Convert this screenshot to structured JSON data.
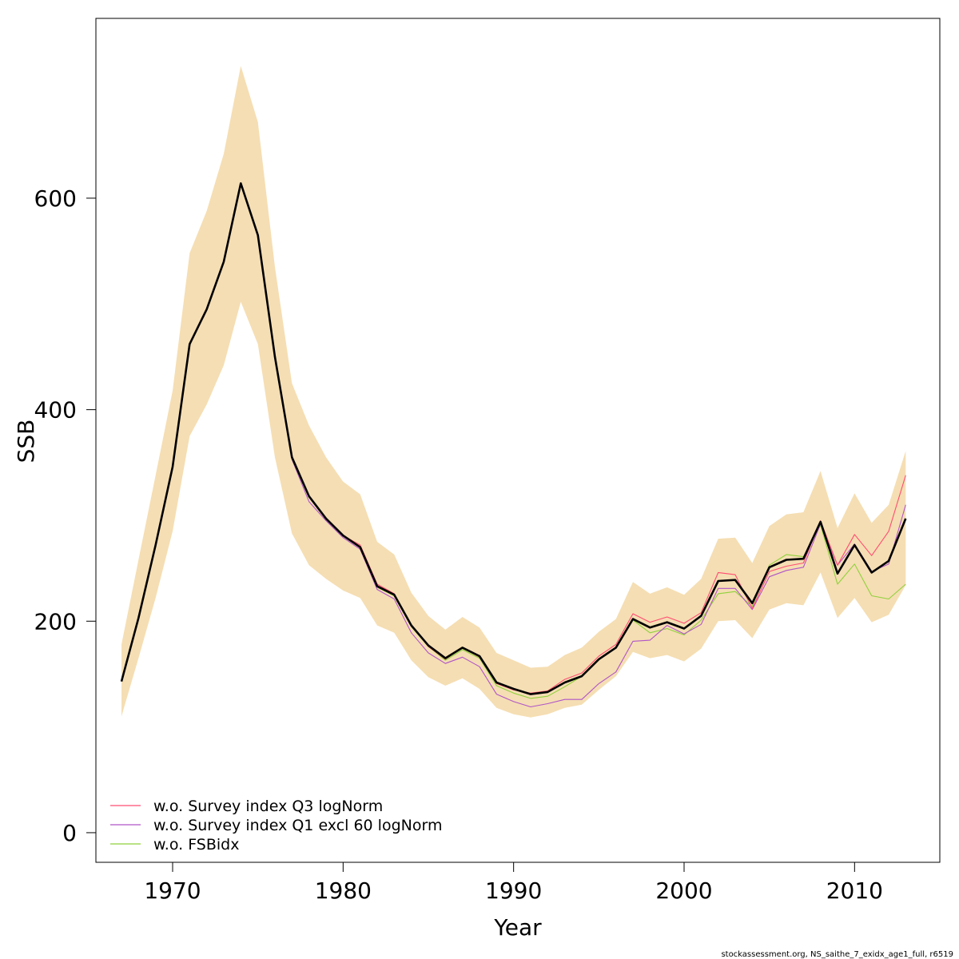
{
  "chart_data": {
    "type": "line",
    "xlabel": "Year",
    "ylabel": "SSB",
    "xlim": [
      1965.5,
      2015
    ],
    "ylim": [
      -28,
      770
    ],
    "x_ticks": [
      1970,
      1980,
      1990,
      2000,
      2010
    ],
    "y_ticks": [
      0,
      200,
      400,
      600
    ],
    "grid": false,
    "legend_position": "bottom-left",
    "caption": "stockassessment.org, NS_saithe_7_exidx_age1_full, r6519",
    "colors": {
      "band": "#f5deb3",
      "base": "#000000",
      "q3": "#ff4d73",
      "q1": "#b055c8",
      "fsb": "#8fd13c"
    },
    "years": [
      1967,
      1968,
      1969,
      1970,
      1971,
      1972,
      1973,
      1974,
      1975,
      1976,
      1977,
      1978,
      1979,
      1980,
      1981,
      1982,
      1983,
      1984,
      1985,
      1986,
      1987,
      1988,
      1989,
      1990,
      1991,
      1992,
      1993,
      1994,
      1995,
      1996,
      1997,
      1998,
      1999,
      2000,
      2001,
      2002,
      2003,
      2004,
      2005,
      2006,
      2007,
      2008,
      2009,
      2010,
      2011,
      2012,
      2013
    ],
    "confidence_band": {
      "upper": [
        178,
        258,
        338,
        418,
        548,
        588,
        642,
        725,
        672,
        535,
        425,
        385,
        355,
        332,
        320,
        275,
        263,
        227,
        205,
        192,
        204,
        194,
        170,
        163,
        156,
        157,
        168,
        175,
        190,
        202,
        237,
        226,
        232,
        225,
        240,
        278,
        279,
        255,
        290,
        301,
        303,
        342,
        288,
        321,
        293,
        310,
        361
      ],
      "lower": [
        110,
        165,
        222,
        285,
        375,
        405,
        442,
        502,
        462,
        355,
        283,
        253,
        240,
        229,
        222,
        196,
        189,
        163,
        147,
        139,
        146,
        136,
        118,
        112,
        109,
        112,
        118,
        121,
        135,
        148,
        171,
        165,
        168,
        162,
        174,
        200,
        201,
        184,
        211,
        217,
        215,
        246,
        203,
        222,
        199,
        206,
        234
      ]
    },
    "series": [
      {
        "key": "base",
        "values": [
          143,
          203,
          272,
          346,
          462,
          495,
          540,
          614,
          565,
          450,
          355,
          318,
          297,
          281,
          270,
          233,
          225,
          196,
          177,
          165,
          175,
          167,
          142,
          136,
          131,
          133,
          142,
          148,
          164,
          175,
          202,
          194,
          199,
          193,
          205,
          238,
          239,
          217,
          251,
          258,
          259,
          294,
          245,
          272,
          246,
          257,
          297
        ]
      },
      {
        "key": "q3",
        "name": "w.o. Survey index Q3 logNorm",
        "values": [
          143,
          203,
          272,
          346,
          462,
          495,
          540,
          614,
          565,
          450,
          355,
          318,
          297,
          281,
          272,
          235,
          226,
          196,
          176,
          164,
          175,
          166,
          141,
          135,
          132,
          134,
          145,
          151,
          167,
          178,
          207,
          199,
          204,
          198,
          208,
          246,
          244,
          212,
          247,
          252,
          255,
          295,
          253,
          282,
          262,
          285,
          338
        ]
      },
      {
        "key": "q1",
        "name": "w.o. Survey index Q1 excl 60 logNorm",
        "values": [
          143,
          203,
          272,
          346,
          462,
          495,
          540,
          614,
          565,
          450,
          353,
          313,
          295,
          279,
          268,
          230,
          221,
          189,
          170,
          160,
          166,
          157,
          131,
          124,
          119,
          122,
          126,
          126,
          141,
          152,
          181,
          182,
          196,
          188,
          197,
          231,
          231,
          211,
          242,
          248,
          251,
          292,
          253,
          273,
          247,
          254,
          310
        ]
      },
      {
        "key": "fsb",
        "name": "w.o. FSBidx",
        "values": [
          143,
          203,
          272,
          346,
          462,
          495,
          540,
          614,
          565,
          450,
          355,
          318,
          297,
          281,
          270,
          232,
          224,
          195,
          176,
          163,
          173,
          165,
          139,
          132,
          127,
          129,
          138,
          148,
          164,
          175,
          201,
          189,
          193,
          187,
          201,
          226,
          228,
          214,
          253,
          263,
          261,
          291,
          235,
          254,
          224,
          221,
          235
        ]
      }
    ]
  }
}
